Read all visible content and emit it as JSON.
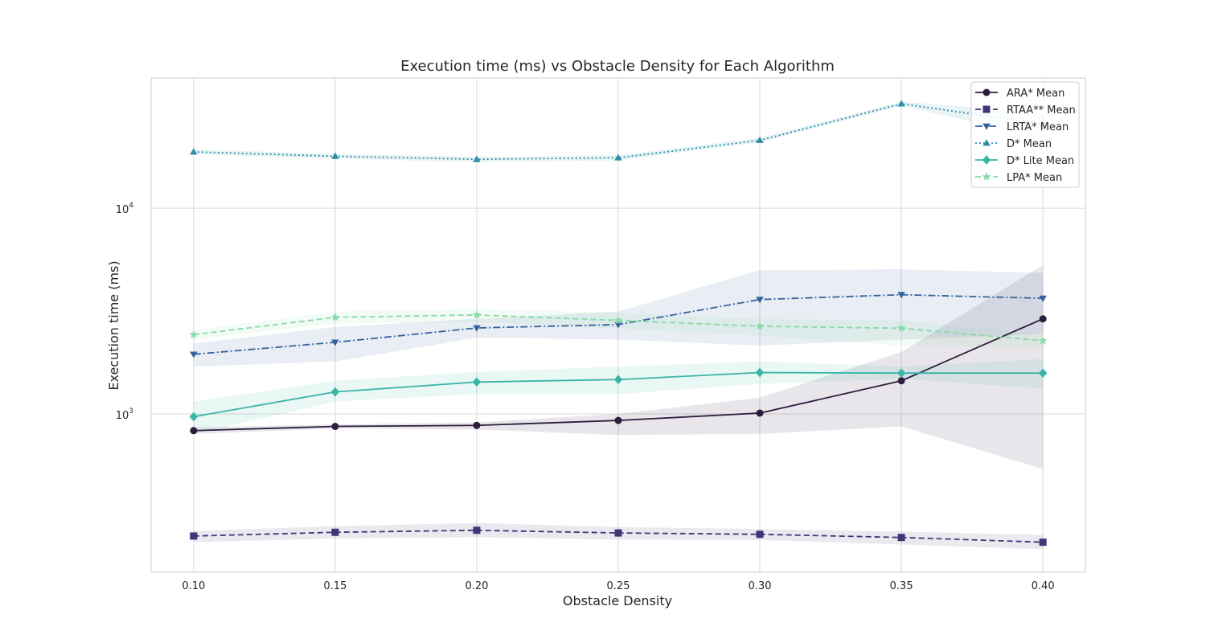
{
  "chart_data": {
    "type": "line",
    "title": "Execution time (ms) vs Obstacle Density for Each Algorithm",
    "xlabel": "Obstacle Density",
    "ylabel": "Execution time (ms)",
    "x": [
      0.1,
      0.15,
      0.2,
      0.25,
      0.3,
      0.35,
      0.4
    ],
    "x_tick_labels": [
      "0.10",
      "0.15",
      "0.20",
      "0.25",
      "0.30",
      "0.35",
      "0.40"
    ],
    "xlim": [
      0.085,
      0.415
    ],
    "yscale": "log",
    "ylim": [
      170,
      43000
    ],
    "y_ticks": [
      {
        "value": 1000,
        "base": "10",
        "exp": "3"
      },
      {
        "value": 10000,
        "base": "10",
        "exp": "4"
      }
    ],
    "grid": true,
    "legend_position": "upper right",
    "series": [
      {
        "name": "ARA* Mean",
        "color": "#2d1e3e",
        "marker": "circle",
        "linestyle": "solid",
        "values": [
          830,
          870,
          880,
          930,
          1010,
          1450,
          2900
        ],
        "band_low": [
          800,
          850,
          840,
          790,
          800,
          870,
          540
        ],
        "band_high": [
          860,
          890,
          910,
          1000,
          1200,
          2000,
          5300
        ]
      },
      {
        "name": "RTAA** Mean",
        "color": "#3d3778",
        "marker": "square",
        "linestyle": "dashed",
        "values": [
          255,
          266,
          272,
          264,
          260,
          251,
          238
        ],
        "band_low": [
          238,
          248,
          252,
          245,
          244,
          232,
          220
        ],
        "band_high": [
          270,
          285,
          295,
          282,
          276,
          268,
          258
        ]
      },
      {
        "name": "LRTA* Mean",
        "color": "#34629c",
        "marker": "triangle-down",
        "linestyle": "dashdot",
        "values": [
          1950,
          2230,
          2620,
          2720,
          3600,
          3800,
          3650
        ],
        "band_low": [
          1700,
          1800,
          2350,
          2300,
          2150,
          2300,
          2450
        ],
        "band_high": [
          2200,
          2650,
          2900,
          3150,
          5000,
          5050,
          4850
        ]
      },
      {
        "name": "D* Mean",
        "color": "#2d8ea6",
        "marker": "triangle-up",
        "linestyle": "dotted",
        "values": [
          18800,
          17900,
          17300,
          17600,
          21400,
          32200,
          25700
        ],
        "band_low": [
          18300,
          17400,
          16800,
          17100,
          20900,
          31500,
          22000
        ],
        "band_high": [
          19300,
          18400,
          17800,
          18100,
          22000,
          33000,
          29000
        ]
      },
      {
        "name": "D* Lite Mean",
        "color": "#3bb5a8",
        "marker": "diamond",
        "linestyle": "solid",
        "values": [
          970,
          1280,
          1430,
          1470,
          1590,
          1580,
          1580
        ],
        "band_low": [
          800,
          1150,
          1250,
          1250,
          1400,
          1480,
          1330
        ],
        "band_high": [
          1150,
          1450,
          1600,
          1700,
          1800,
          1700,
          1850
        ]
      },
      {
        "name": "LPA* Mean",
        "color": "#86dba8",
        "marker": "star",
        "linestyle": "dashed",
        "values": [
          2430,
          2950,
          3030,
          2850,
          2670,
          2610,
          2270
        ],
        "band_low": [
          2300,
          2750,
          2800,
          2600,
          2400,
          2150,
          2100
        ],
        "band_high": [
          2550,
          3150,
          3250,
          3100,
          2900,
          2850,
          2450
        ]
      }
    ]
  }
}
